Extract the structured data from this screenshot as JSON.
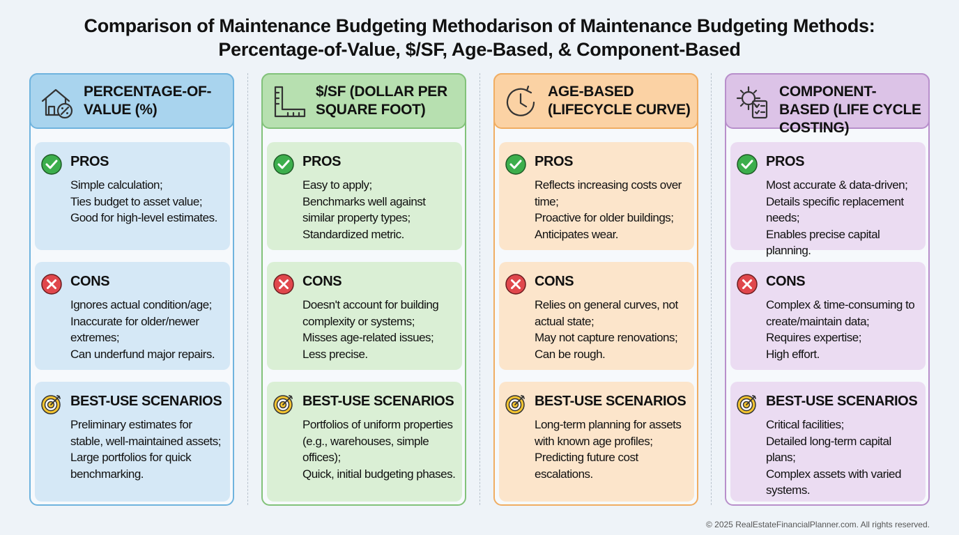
{
  "title": {
    "line1": "Comparison of Maintenance Budgeting Methodarison of Maintenance Budgeting Methods:",
    "line2": "Percentage-of-Value, $/SF, Age-Based, & Component-Based"
  },
  "columns": [
    {
      "header": "PERCENTAGE-OF-VALUE (%)",
      "sections": [
        {
          "label": "PROS",
          "items": [
            "Simple calculation;",
            "Ties budget to asset value;",
            "Good for high-level estimates."
          ]
        },
        {
          "label": "CONS",
          "items": [
            "Ignores actual condition/age;",
            "Inaccurate for older/newer extremes;",
            "Can underfund major repairs."
          ]
        },
        {
          "label": "BEST-USE SCENARIOS",
          "items": [
            "Preliminary estimates for stable, well-maintained assets;",
            "Large portfolios for quick benchmarking."
          ]
        }
      ]
    },
    {
      "header": "$/SF (DOLLAR PER SQUARE FOOT)",
      "sections": [
        {
          "label": "PROS",
          "items": [
            "Easy to apply;",
            "Benchmarks well against similar property types;",
            "Standardized metric."
          ]
        },
        {
          "label": "CONS",
          "items": [
            "Doesn't account for building complexity or systems;",
            "Misses age-related issues;",
            "Less precise."
          ]
        },
        {
          "label": "BEST-USE SCENARIOS",
          "items": [
            "Portfolios of uniform properties (e.g., warehouses, simple offices);",
            "Quick, initial budgeting phases."
          ]
        }
      ]
    },
    {
      "header": "AGE-BASED (LIFECYCLE CURVE)",
      "sections": [
        {
          "label": "PROS",
          "items": [
            "Reflects increasing costs over time;",
            "Proactive for older buildings;",
            "Anticipates wear."
          ]
        },
        {
          "label": "CONS",
          "items": [
            "Relies on general curves, not actual state;",
            "May not capture renovations;",
            "Can be rough."
          ]
        },
        {
          "label": "BEST-USE SCENARIOS",
          "items": [
            "Long-term planning for assets with known age profiles;",
            "Predicting future cost escalations."
          ]
        }
      ]
    },
    {
      "header": "COMPONENT-BASED (LIFE CYCLE COSTING)",
      "sections": [
        {
          "label": "PROS",
          "items": [
            "Most accurate & data-driven;",
            "Details specific replacement needs;",
            "Enables precise capital planning."
          ]
        },
        {
          "label": "CONS",
          "items": [
            "Complex & time-consuming to create/maintain data;",
            "Requires expertise;",
            "High effort."
          ]
        },
        {
          "label": "BEST-USE SCENARIOS",
          "items": [
            "Critical facilities;",
            "Detailed long-term capital plans;",
            "Complex assets with varied systems."
          ]
        }
      ]
    }
  ],
  "footer": "© 2025 RealEstateFinancialPlanner.com. All rights reserved."
}
